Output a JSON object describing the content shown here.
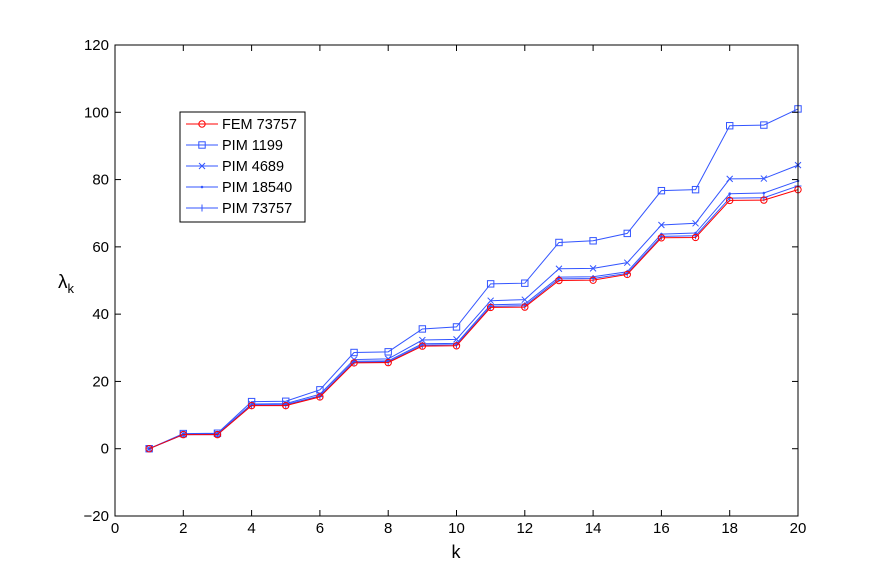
{
  "chart_data": {
    "type": "line",
    "xlabel": "k",
    "ylabel": "λ",
    "ylabel_subscript": "k",
    "xlim": [
      0,
      20
    ],
    "ylim": [
      -20,
      120
    ],
    "xticks": [
      0,
      2,
      4,
      6,
      8,
      10,
      12,
      14,
      16,
      18,
      20
    ],
    "yticks": [
      -20,
      0,
      20,
      40,
      60,
      80,
      100,
      120
    ],
    "grid": false,
    "legend_position": "upper-left",
    "x": [
      1,
      2,
      3,
      4,
      5,
      6,
      7,
      8,
      9,
      10,
      11,
      12,
      13,
      14,
      15,
      16,
      17,
      18,
      19,
      20
    ],
    "series": [
      {
        "name": "FEM 73757",
        "color": "#ff0000",
        "marker": "circle",
        "values": [
          0,
          4.2,
          4.2,
          12.8,
          12.8,
          15.4,
          25.5,
          25.6,
          30.5,
          30.6,
          42.0,
          42.1,
          50.0,
          50.1,
          51.8,
          62.7,
          62.8,
          73.8,
          73.9,
          77.0
        ]
      },
      {
        "name": "PIM 1199",
        "color": "#3355ff",
        "marker": "square",
        "values": [
          0,
          4.5,
          4.6,
          14.0,
          14.1,
          17.5,
          28.6,
          28.8,
          35.6,
          36.2,
          49.0,
          49.2,
          61.3,
          61.8,
          64.0,
          76.7,
          77.0,
          96.0,
          96.2,
          101.0
        ]
      },
      {
        "name": "PIM 4689",
        "color": "#3355ff",
        "marker": "x",
        "values": [
          0,
          4.3,
          4.4,
          13.3,
          13.4,
          16.2,
          26.5,
          26.7,
          32.3,
          32.5,
          44.0,
          44.3,
          53.5,
          53.6,
          55.3,
          66.5,
          67.0,
          80.2,
          80.3,
          84.3
        ]
      },
      {
        "name": "PIM 18540",
        "color": "#3355ff",
        "marker": "dot",
        "values": [
          0,
          4.2,
          4.3,
          13.0,
          13.1,
          15.7,
          26.0,
          26.1,
          31.2,
          31.3,
          42.8,
          43.0,
          51.0,
          51.1,
          52.6,
          63.8,
          64.1,
          75.8,
          76.0,
          79.6
        ]
      },
      {
        "name": "PIM 73757",
        "color": "#3355ff",
        "marker": "plus",
        "values": [
          0,
          4.2,
          4.2,
          12.9,
          12.9,
          15.5,
          25.7,
          25.8,
          30.8,
          30.9,
          42.3,
          42.5,
          50.5,
          50.6,
          52.1,
          63.1,
          63.3,
          74.5,
          74.6,
          78.1
        ]
      }
    ]
  }
}
